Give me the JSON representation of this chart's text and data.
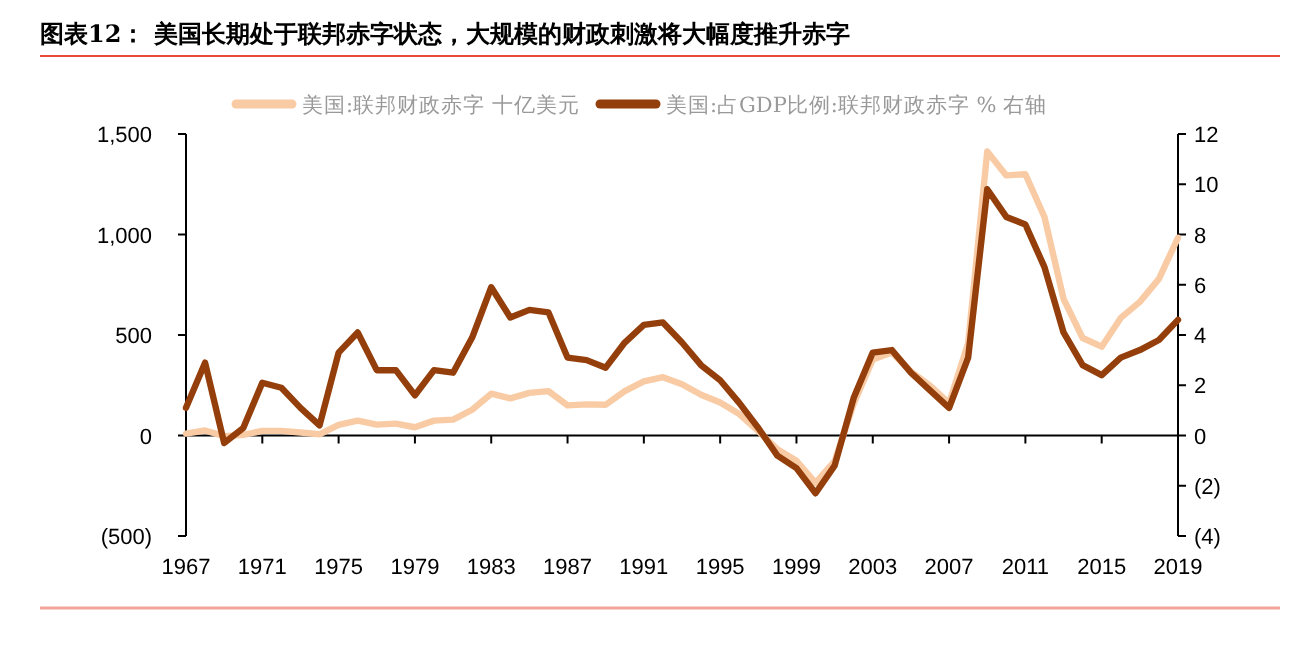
{
  "chart_data": {
    "type": "line",
    "title": "图表12：   美国长期处于联邦赤字状态，大规模的财政刺激将大幅度推升赤字",
    "x": [
      1967,
      1968,
      1969,
      1970,
      1971,
      1972,
      1973,
      1974,
      1975,
      1976,
      1977,
      1978,
      1979,
      1980,
      1981,
      1982,
      1983,
      1984,
      1985,
      1986,
      1987,
      1988,
      1989,
      1990,
      1991,
      1992,
      1993,
      1994,
      1995,
      1996,
      1997,
      1998,
      1999,
      2000,
      2001,
      2002,
      2003,
      2004,
      2005,
      2006,
      2007,
      2008,
      2009,
      2010,
      2011,
      2012,
      2013,
      2014,
      2015,
      2016,
      2017,
      2018,
      2019
    ],
    "series": [
      {
        "name": "美国:联邦财政赤字 十亿美元",
        "color": "#f9cba5",
        "values": [
          9,
          25,
          -3,
          3,
          23,
          23,
          15,
          6,
          53,
          74,
          54,
          59,
          41,
          74,
          79,
          128,
          208,
          185,
          212,
          221,
          150,
          155,
          153,
          221,
          269,
          290,
          255,
          203,
          164,
          107,
          22,
          -69,
          -126,
          -236,
          -128,
          158,
          378,
          413,
          318,
          248,
          161,
          459,
          1413,
          1294,
          1300,
          1087,
          680,
          485,
          442,
          585,
          665,
          779,
          984
        ]
      },
      {
        "name": "美国:占GDP比例:联邦财政赤字 % 右轴",
        "color": "#943f0b",
        "axis": "y2",
        "values": [
          1.1,
          2.9,
          -0.3,
          0.3,
          2.1,
          1.9,
          1.1,
          0.4,
          3.3,
          4.1,
          2.6,
          2.6,
          1.6,
          2.6,
          2.5,
          3.9,
          5.9,
          4.7,
          5.0,
          4.9,
          3.1,
          3.0,
          2.7,
          3.7,
          4.4,
          4.5,
          3.7,
          2.8,
          2.2,
          1.3,
          0.3,
          -0.8,
          -1.3,
          -2.3,
          -1.2,
          1.5,
          3.3,
          3.4,
          2.5,
          1.8,
          1.1,
          3.1,
          9.8,
          8.7,
          8.4,
          6.7,
          4.1,
          2.8,
          2.4,
          3.1,
          3.4,
          3.8,
          4.6
        ]
      }
    ],
    "xlim": [
      1967,
      2019
    ],
    "xticks": [
      1967,
      1971,
      1975,
      1979,
      1983,
      1987,
      1991,
      1995,
      1999,
      2003,
      2007,
      2011,
      2015,
      2019
    ],
    "ylim": [
      -500,
      1500
    ],
    "yticks": [
      {
        "value": -500,
        "label": "(500)"
      },
      0,
      {
        "value": 500,
        "label": "500"
      },
      {
        "value": 1000,
        "label": "1,000"
      },
      {
        "value": 1500,
        "label": "1,500"
      }
    ],
    "y2lim": [
      -4,
      12
    ],
    "y2ticks": [
      {
        "value": -4,
        "label": "(4)"
      },
      {
        "value": -2,
        "label": "(2)"
      },
      0,
      2,
      4,
      6,
      8,
      10,
      12
    ],
    "legend": "top",
    "line_style": "solid"
  }
}
